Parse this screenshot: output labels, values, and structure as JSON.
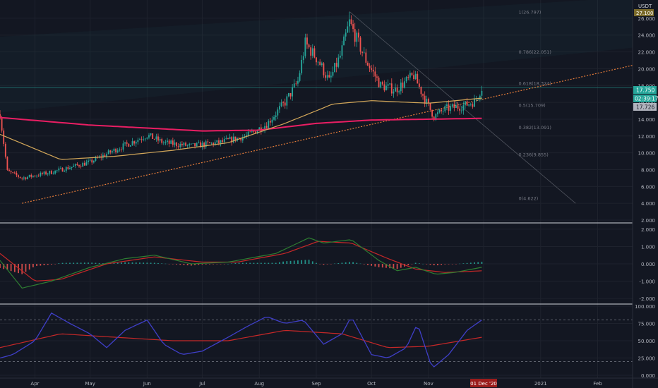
{
  "currency": "USDT",
  "price_scale_top_badge": "27.100",
  "time_labels": [
    "Apr",
    "May",
    "Jun",
    "Jul",
    "Aug",
    "Sep",
    "Oct",
    "Nov",
    "01 Dec '20",
    "2021",
    "Feb"
  ],
  "time_label_dates": [
    "2020-04-01",
    "2020-05-01",
    "2020-06-01",
    "2020-07-01",
    "2020-08-01",
    "2020-09-01",
    "2020-10-01",
    "2020-11-01",
    "2020-12-01",
    "2021-01-01",
    "2021-02-01"
  ],
  "crosshair_date_label": "01 Dec '20",
  "last_price": "17.750",
  "countdown": "02:39:17",
  "ema_badge": "17.726",
  "colors": {
    "background": "#131722",
    "up": "#26a69a",
    "down": "#ef5350",
    "ma_slow": "#e91e63",
    "ma_fast": "#d4a85a",
    "rsi": "#3f3fc8",
    "macd_signal": "#c62828",
    "macd_line": "#2e7d32",
    "fib_text": "#787b86"
  },
  "chart_data": [
    {
      "type": "candlestick",
      "pane": "price",
      "x_range": [
        "2020-03-13",
        "2021-02-20"
      ],
      "ylim": [
        2,
        27.5
      ],
      "y_ticks": [
        "2.000",
        "4.000",
        "6.000",
        "8.000",
        "10.000",
        "12.000",
        "14.000",
        "16.000",
        "18.000",
        "20.000",
        "22.000",
        "24.000",
        "26.000"
      ],
      "y_tick_values": [
        2,
        4,
        6,
        8,
        10,
        12,
        14,
        16,
        18,
        20,
        22,
        24,
        26
      ],
      "anchors_close": [
        [
          "2020-03-13",
          14.6
        ],
        [
          "2020-03-17",
          7.8
        ],
        [
          "2020-03-25",
          7.0
        ],
        [
          "2020-04-10",
          7.7
        ],
        [
          "2020-05-01",
          8.9
        ],
        [
          "2020-05-15",
          10.4
        ],
        [
          "2020-06-01",
          12.1
        ],
        [
          "2020-06-10",
          11.2
        ],
        [
          "2020-06-25",
          10.8
        ],
        [
          "2020-07-10",
          11.2
        ],
        [
          "2020-07-25",
          12.0
        ],
        [
          "2020-08-05",
          13.4
        ],
        [
          "2020-08-15",
          16.0
        ],
        [
          "2020-08-22",
          18.5
        ],
        [
          "2020-08-26",
          23.0
        ],
        [
          "2020-09-02",
          21.0
        ],
        [
          "2020-09-08",
          18.5
        ],
        [
          "2020-09-14",
          21.5
        ],
        [
          "2020-09-19",
          25.5
        ],
        [
          "2020-09-22",
          24.0
        ],
        [
          "2020-09-28",
          21.0
        ],
        [
          "2020-10-06",
          18.0
        ],
        [
          "2020-10-14",
          17.5
        ],
        [
          "2020-10-24",
          19.2
        ],
        [
          "2020-10-30",
          16.4
        ],
        [
          "2020-11-04",
          14.3
        ],
        [
          "2020-11-10",
          15.2
        ],
        [
          "2020-11-20",
          15.6
        ],
        [
          "2020-11-26",
          16.1
        ],
        [
          "2020-11-30",
          17.75
        ]
      ],
      "overlays": {
        "ma_slow": [
          [
            "2020-03-13",
            14.2
          ],
          [
            "2020-05-01",
            13.3
          ],
          [
            "2020-07-01",
            12.6
          ],
          [
            "2020-08-01",
            12.7
          ],
          [
            "2020-09-01",
            13.5
          ],
          [
            "2020-10-01",
            13.9
          ],
          [
            "2020-11-01",
            14.0
          ],
          [
            "2020-11-30",
            14.1
          ]
        ],
        "ma_fast": [
          [
            "2020-03-13",
            12.2
          ],
          [
            "2020-04-15",
            9.2
          ],
          [
            "2020-05-15",
            9.6
          ],
          [
            "2020-06-15",
            10.3
          ],
          [
            "2020-07-15",
            11.2
          ],
          [
            "2020-08-15",
            13.5
          ],
          [
            "2020-09-10",
            15.8
          ],
          [
            "2020-10-01",
            16.2
          ],
          [
            "2020-11-01",
            15.9
          ],
          [
            "2020-11-30",
            16.5
          ]
        ],
        "trendline_dotted": [
          [
            "2020-03-25",
            4.0
          ],
          [
            "2021-02-20",
            20.4
          ]
        ],
        "trend_channel": [
          [
            "2020-03-13",
            14.8
          ],
          [
            "2021-02-20",
            22.5
          ]
        ],
        "horizontal_last": 17.75
      },
      "fib_retracement": [
        {
          "label": "1(26.797)",
          "value": 26.797
        },
        {
          "label": "0.786(22.051)",
          "value": 22.051
        },
        {
          "label": "0.618(18.324)",
          "value": 18.324
        },
        {
          "label": "0.5(15.709)",
          "value": 15.709
        },
        {
          "label": "0.382(13.091)",
          "value": 13.091
        },
        {
          "label": "0.236(9.855)",
          "value": 9.855
        },
        {
          "label": "0(4.622)",
          "value": 4.622
        }
      ]
    },
    {
      "type": "macd",
      "pane": "macd",
      "ylim": [
        -2.2,
        2.2
      ],
      "y_ticks": [
        "2.000",
        "1.000",
        "0.000",
        "-1.000",
        "-2.000"
      ],
      "y_tick_values": [
        2,
        1,
        0,
        -1,
        -2
      ],
      "anchors_macd": [
        [
          "2020-03-13",
          0.2
        ],
        [
          "2020-03-25",
          -1.4
        ],
        [
          "2020-04-10",
          -1.0
        ],
        [
          "2020-05-01",
          -0.2
        ],
        [
          "2020-05-20",
          0.3
        ],
        [
          "2020-06-05",
          0.5
        ],
        [
          "2020-06-25",
          0.0
        ],
        [
          "2020-07-15",
          0.1
        ],
        [
          "2020-08-10",
          0.6
        ],
        [
          "2020-08-28",
          1.5
        ],
        [
          "2020-09-05",
          1.2
        ],
        [
          "2020-09-20",
          1.4
        ],
        [
          "2020-10-05",
          0.2
        ],
        [
          "2020-10-15",
          -0.4
        ],
        [
          "2020-10-25",
          -0.2
        ],
        [
          "2020-11-05",
          -0.6
        ],
        [
          "2020-11-15",
          -0.5
        ],
        [
          "2020-11-30",
          -0.2
        ]
      ],
      "anchors_signal": [
        [
          "2020-03-13",
          0.6
        ],
        [
          "2020-04-01",
          -1.0
        ],
        [
          "2020-04-15",
          -0.9
        ],
        [
          "2020-05-10",
          0.0
        ],
        [
          "2020-06-05",
          0.4
        ],
        [
          "2020-07-01",
          0.1
        ],
        [
          "2020-07-20",
          0.1
        ],
        [
          "2020-08-15",
          0.6
        ],
        [
          "2020-09-02",
          1.3
        ],
        [
          "2020-09-20",
          1.2
        ],
        [
          "2020-10-10",
          0.3
        ],
        [
          "2020-10-25",
          -0.3
        ],
        [
          "2020-11-10",
          -0.5
        ],
        [
          "2020-11-30",
          -0.4
        ]
      ]
    },
    {
      "type": "rsi",
      "pane": "rsi",
      "ylim": [
        0,
        100
      ],
      "y_ticks": [
        "100.000",
        "75.000",
        "50.000",
        "25.000",
        "0.000"
      ],
      "y_tick_values": [
        100,
        75,
        50,
        25,
        0
      ],
      "bands": [
        80,
        20
      ],
      "anchors_rsi": [
        [
          "2020-03-13",
          25
        ],
        [
          "2020-03-20",
          30
        ],
        [
          "2020-04-01",
          50
        ],
        [
          "2020-04-10",
          90
        ],
        [
          "2020-04-20",
          75
        ],
        [
          "2020-05-01",
          60
        ],
        [
          "2020-05-10",
          40
        ],
        [
          "2020-05-20",
          65
        ],
        [
          "2020-06-01",
          80
        ],
        [
          "2020-06-10",
          45
        ],
        [
          "2020-06-20",
          30
        ],
        [
          "2020-07-01",
          35
        ],
        [
          "2020-07-15",
          55
        ],
        [
          "2020-07-25",
          70
        ],
        [
          "2020-08-05",
          85
        ],
        [
          "2020-08-15",
          75
        ],
        [
          "2020-08-25",
          80
        ],
        [
          "2020-09-05",
          45
        ],
        [
          "2020-09-15",
          60
        ],
        [
          "2020-09-20",
          85
        ],
        [
          "2020-10-01",
          30
        ],
        [
          "2020-10-10",
          25
        ],
        [
          "2020-10-20",
          40
        ],
        [
          "2020-10-26",
          75
        ],
        [
          "2020-11-03",
          10
        ],
        [
          "2020-11-12",
          30
        ],
        [
          "2020-11-22",
          65
        ],
        [
          "2020-11-30",
          80
        ]
      ],
      "anchors_signal": [
        [
          "2020-03-13",
          40
        ],
        [
          "2020-04-15",
          60
        ],
        [
          "2020-05-15",
          55
        ],
        [
          "2020-06-15",
          50
        ],
        [
          "2020-07-15",
          50
        ],
        [
          "2020-08-15",
          65
        ],
        [
          "2020-09-15",
          60
        ],
        [
          "2020-10-10",
          40
        ],
        [
          "2020-11-01",
          42
        ],
        [
          "2020-11-30",
          55
        ]
      ]
    }
  ]
}
